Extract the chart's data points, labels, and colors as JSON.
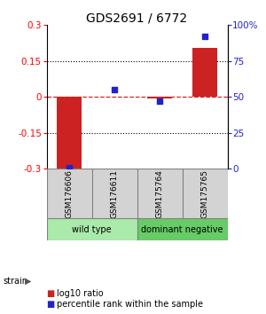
{
  "title": "GDS2691 / 6772",
  "samples": [
    "GSM176606",
    "GSM176611",
    "GSM175764",
    "GSM175765"
  ],
  "log10_ratio": [
    -0.305,
    0.002,
    -0.008,
    0.205
  ],
  "percentile_rank": [
    1,
    55,
    47,
    92
  ],
  "groups": [
    {
      "label": "wild type",
      "samples": [
        0,
        1
      ],
      "color": "#aaeaaa"
    },
    {
      "label": "dominant negative",
      "samples": [
        2,
        3
      ],
      "color": "#66cc66"
    }
  ],
  "ylim_left": [
    -0.3,
    0.3
  ],
  "ylim_right": [
    0,
    100
  ],
  "yticks_left": [
    -0.3,
    -0.15,
    0,
    0.15,
    0.3
  ],
  "yticks_right": [
    0,
    25,
    50,
    75,
    100
  ],
  "ytick_labels_right": [
    "0",
    "25",
    "50",
    "75",
    "100%"
  ],
  "bar_color": "#cc2222",
  "dot_color": "#2222cc",
  "hline_color": "#dd2222",
  "strain_label": "strain",
  "legend_bar": "log10 ratio",
  "legend_dot": "percentile rank within the sample"
}
